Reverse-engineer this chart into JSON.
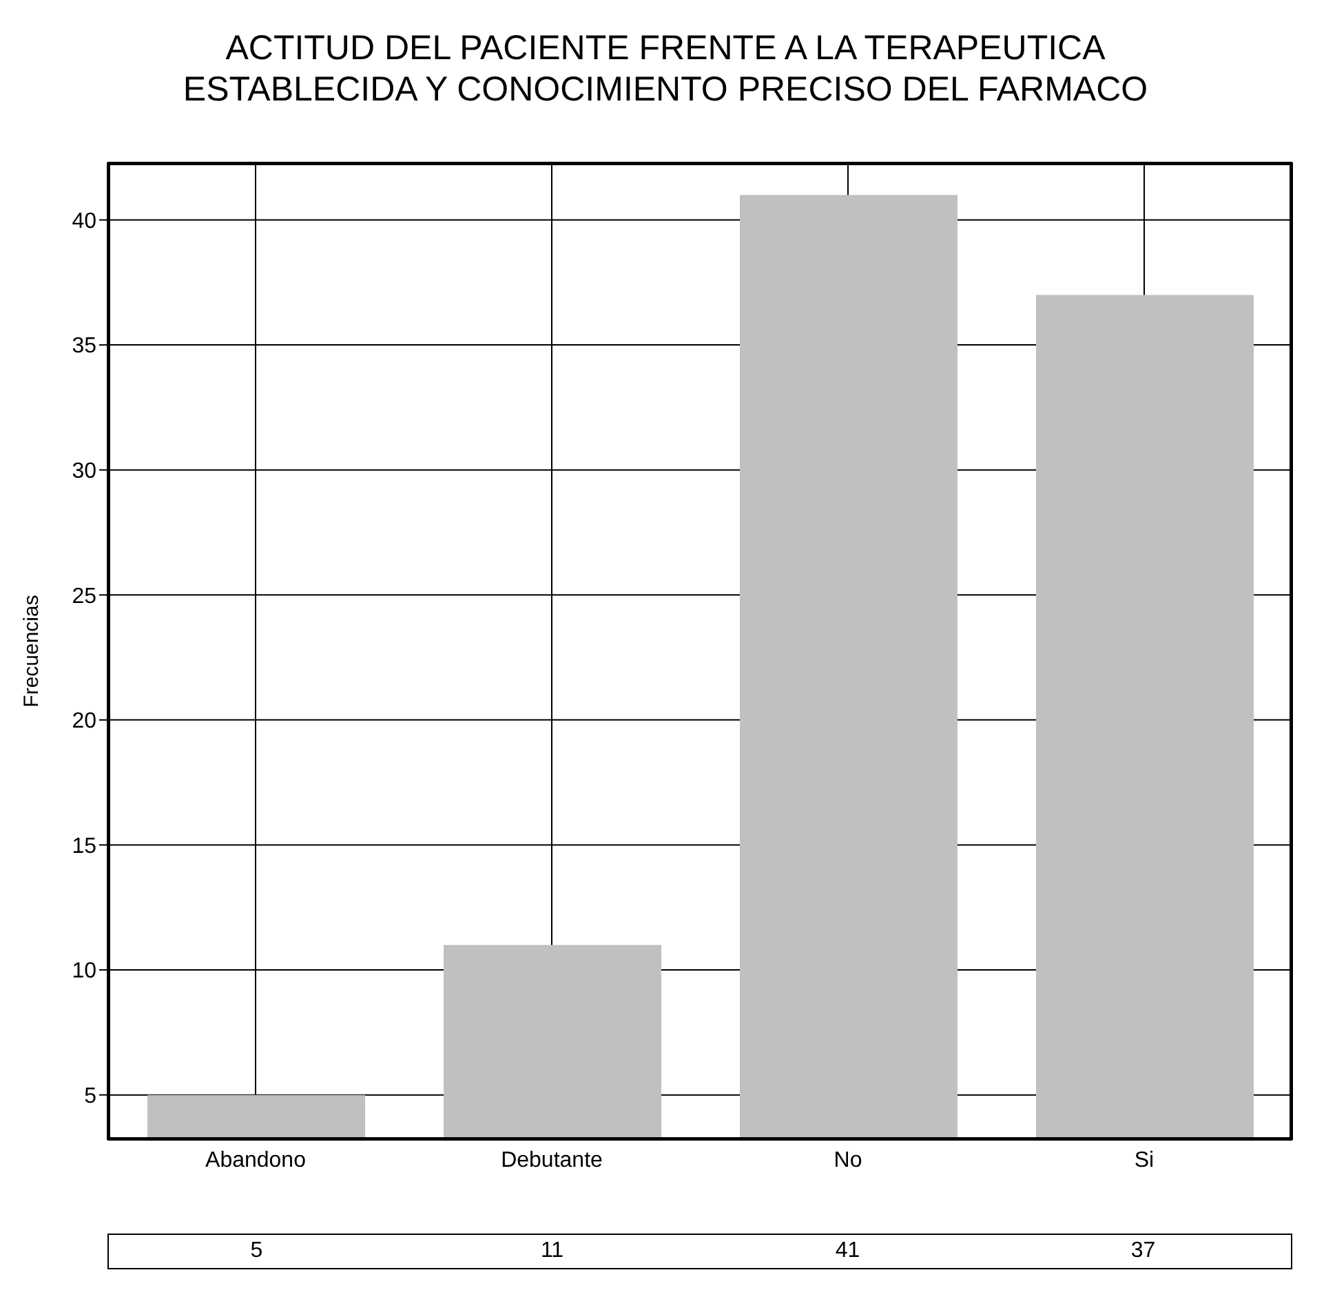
{
  "chart_data": {
    "type": "bar",
    "title": "ACTITUD DEL PACIENTE FRENTE A LA TERAPEUTICA\nESTABLECIDA Y CONOCIMIENTO PRECISO DEL FARMACO",
    "ylabel": "Frecuencias",
    "categories": [
      "Abandono",
      "Debutante",
      "No",
      "Si"
    ],
    "values": [
      5,
      11,
      41,
      37
    ],
    "color": "#c0c0c0",
    "ylim": [
      3.2,
      42.3
    ],
    "yticks": [
      5,
      10,
      15,
      20,
      25,
      30,
      35,
      40
    ],
    "grid": true,
    "data_labels": true
  }
}
